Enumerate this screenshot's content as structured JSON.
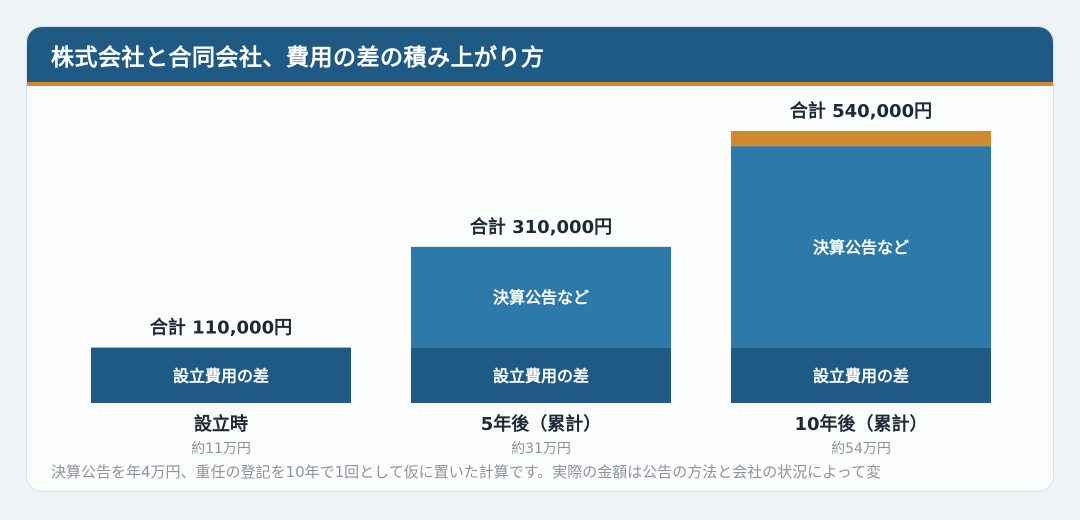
{
  "title": "株式会社と合同会社、費用の差の積み上がり方",
  "note": "決算公告を年4万円、重任の登記を10年で1回として仮に置いた計算です。実際の金額は公告の方法と会社の状況によって変",
  "colors": {
    "setup": "#1f5a85",
    "kessan": "#2d7aaa",
    "other": "#cf8a2d",
    "header": "#1f5a85",
    "accent": "#cf8a2d"
  },
  "chart_data": {
    "type": "bar",
    "stacked": true,
    "categories": [
      "設立時",
      "5年後（累計）",
      "10年後（累計）"
    ],
    "sublabels": [
      "約11万円",
      "約31万円",
      "約54万円"
    ],
    "totals_labels": [
      "合計 110,000円",
      "合計 310,000円",
      "合計 540,000円"
    ],
    "totals": [
      110000,
      310000,
      540000
    ],
    "series": [
      {
        "name": "設立費用の差",
        "key": "setup",
        "values": [
          110000,
          110000,
          110000
        ]
      },
      {
        "name": "決算公告など",
        "key": "kessan",
        "values": [
          0,
          200000,
          400000
        ]
      },
      {
        "name": "",
        "key": "other",
        "values": [
          0,
          0,
          30000
        ]
      }
    ]
  }
}
